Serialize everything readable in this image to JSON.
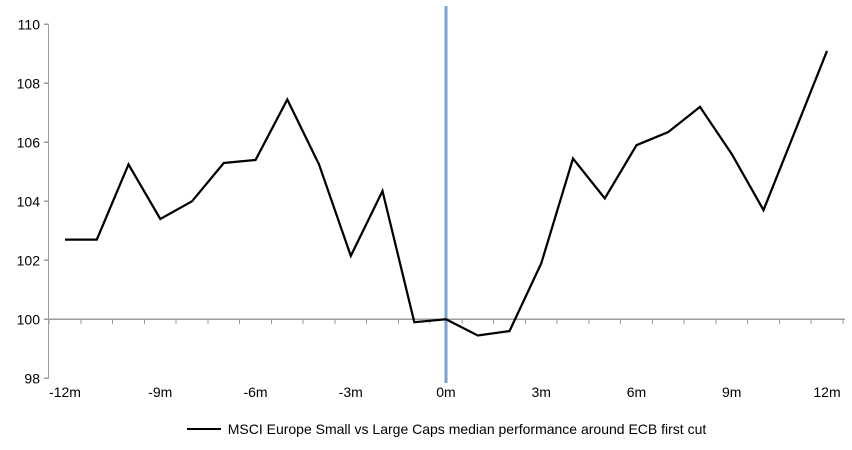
{
  "chart_data": {
    "type": "line",
    "title": "",
    "xlabel": "",
    "ylabel": "",
    "ylim": [
      98,
      110
    ],
    "yticks": [
      110,
      108,
      106,
      104,
      102,
      100,
      98
    ],
    "xtick_labels": [
      "-12m",
      "-9m",
      "-6m",
      "-3m",
      "0m",
      "3m",
      "6m",
      "9m",
      "12m"
    ],
    "xtick_months": [
      -12,
      -9,
      -6,
      -3,
      0,
      3,
      6,
      9,
      12
    ],
    "x_months": [
      -12,
      -11,
      -10,
      -9,
      -8,
      -7,
      -6,
      -5,
      -4,
      -3,
      -2,
      -1,
      0,
      1,
      2,
      3,
      4,
      5,
      6,
      7,
      8,
      9,
      10,
      11,
      12
    ],
    "series": [
      {
        "name": "MSCI Europe Small vs Large Caps median performance around ECB first cut",
        "color": "#000000",
        "values": [
          102.7,
          102.7,
          105.25,
          103.4,
          104.0,
          105.3,
          105.4,
          107.45,
          105.25,
          102.15,
          104.35,
          99.9,
          100.0,
          99.45,
          99.6,
          101.9,
          105.45,
          104.1,
          105.9,
          106.35,
          107.2,
          105.6,
          103.7,
          106.4,
          109.1
        ]
      }
    ],
    "baseline_value": 100,
    "event_line": {
      "x_month": 0,
      "color": "#78a3cf"
    },
    "axis_color": "#9b9b9b",
    "grid": "off",
    "legend_position": "bottom"
  },
  "legend": {
    "label": "MSCI Europe Small vs Large Caps median performance around ECB first cut"
  }
}
